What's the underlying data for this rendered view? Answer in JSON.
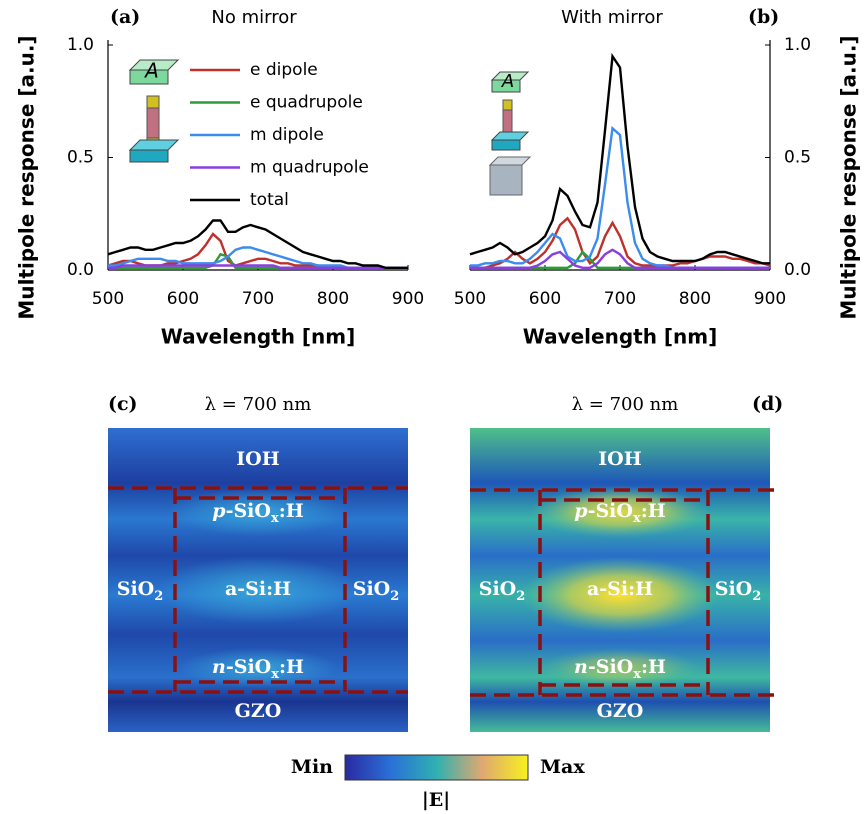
{
  "chart_data": [
    {
      "type": "line",
      "panel": "(a)",
      "title": "No mirror",
      "xlabel": "Wavelength [nm]",
      "ylabel": "Multipole response [a.u.]",
      "yaxis_side": "left",
      "legend": "upper-right",
      "xlim": [
        500,
        900
      ],
      "ylim": [
        0,
        1
      ],
      "xticks": [
        500,
        600,
        700,
        800,
        900
      ],
      "yticks": [
        {
          "value": 0,
          "label": "0.0"
        },
        {
          "value": 0.5,
          "label": "0.5"
        },
        {
          "value": 1,
          "label": "1.0"
        }
      ],
      "x": [
        500,
        510,
        520,
        530,
        540,
        550,
        560,
        570,
        580,
        590,
        600,
        610,
        620,
        630,
        640,
        650,
        660,
        670,
        680,
        690,
        700,
        710,
        720,
        730,
        740,
        750,
        760,
        770,
        780,
        790,
        800,
        810,
        820,
        830,
        840,
        850,
        860,
        870,
        880,
        890,
        900
      ],
      "series": [
        {
          "name": "e dipole",
          "color": "#c0302b",
          "values": [
            0.02,
            0.03,
            0.04,
            0.04,
            0.03,
            0.02,
            0.02,
            0.02,
            0.03,
            0.03,
            0.04,
            0.05,
            0.07,
            0.11,
            0.16,
            0.13,
            0.04,
            0.02,
            0.03,
            0.04,
            0.05,
            0.05,
            0.04,
            0.03,
            0.03,
            0.02,
            0.02,
            0.02,
            0.02,
            0.01,
            0.01,
            0.01,
            0.01,
            0.01,
            0.01,
            0.01,
            0.01,
            0.01,
            0.01,
            0.01,
            0.01
          ]
        },
        {
          "name": "e quadrupole",
          "color": "#2e9a3a",
          "values": [
            0.01,
            0.01,
            0.01,
            0.01,
            0.01,
            0.01,
            0.01,
            0.01,
            0.01,
            0.01,
            0.01,
            0.01,
            0.01,
            0.01,
            0.02,
            0.07,
            0.06,
            0.01,
            0.01,
            0.01,
            0.01,
            0.01,
            0.01,
            0.01,
            0.01,
            0.01,
            0.01,
            0.01,
            0.01,
            0.01,
            0.01,
            0.01,
            0.01,
            0.01,
            0.01,
            0.01,
            0.01,
            0.01,
            0.01,
            0.01,
            0.01
          ]
        },
        {
          "name": "m dipole",
          "color": "#3b8ced",
          "values": [
            0.02,
            0.02,
            0.03,
            0.04,
            0.05,
            0.05,
            0.05,
            0.05,
            0.04,
            0.04,
            0.03,
            0.03,
            0.03,
            0.03,
            0.03,
            0.04,
            0.06,
            0.09,
            0.1,
            0.1,
            0.09,
            0.08,
            0.07,
            0.06,
            0.05,
            0.04,
            0.03,
            0.03,
            0.02,
            0.02,
            0.02,
            0.02,
            0.01,
            0.01,
            0.01,
            0.01,
            0.01,
            0.01,
            0.01,
            0.01,
            0.01
          ]
        },
        {
          "name": "m quadrupole",
          "color": "#8a3ee0",
          "values": [
            0.01,
            0.01,
            0.02,
            0.02,
            0.02,
            0.02,
            0.02,
            0.02,
            0.02,
            0.02,
            0.02,
            0.02,
            0.02,
            0.02,
            0.02,
            0.02,
            0.02,
            0.02,
            0.02,
            0.02,
            0.02,
            0.02,
            0.02,
            0.01,
            0.01,
            0.01,
            0.01,
            0.01,
            0.01,
            0.01,
            0.01,
            0.01,
            0.01,
            0.01,
            0.01,
            0.01,
            0.01,
            0.01,
            0.01,
            0.01,
            0.01
          ]
        },
        {
          "name": "total",
          "color": "#000000",
          "values": [
            0.07,
            0.08,
            0.09,
            0.1,
            0.1,
            0.09,
            0.09,
            0.1,
            0.11,
            0.12,
            0.12,
            0.13,
            0.15,
            0.18,
            0.22,
            0.22,
            0.17,
            0.17,
            0.19,
            0.2,
            0.19,
            0.18,
            0.16,
            0.14,
            0.12,
            0.1,
            0.08,
            0.07,
            0.06,
            0.05,
            0.04,
            0.04,
            0.03,
            0.03,
            0.02,
            0.02,
            0.02,
            0.01,
            0.01,
            0.01,
            0.01
          ]
        }
      ]
    },
    {
      "type": "line",
      "panel": "(b)",
      "title": "With mirror",
      "xlabel": "Wavelength [nm]",
      "ylabel": "Multipole response [a.u.]",
      "yaxis_side": "right",
      "xlim": [
        500,
        900
      ],
      "ylim": [
        0,
        1
      ],
      "xticks": [
        500,
        600,
        700,
        800,
        900
      ],
      "yticks": [
        {
          "value": 0,
          "label": "0.0"
        },
        {
          "value": 0.5,
          "label": "0.5"
        },
        {
          "value": 1,
          "label": "1.0"
        }
      ],
      "x": [
        500,
        510,
        520,
        530,
        540,
        550,
        560,
        570,
        580,
        590,
        600,
        610,
        620,
        630,
        640,
        650,
        660,
        670,
        680,
        690,
        700,
        710,
        720,
        730,
        740,
        750,
        760,
        770,
        780,
        790,
        800,
        810,
        820,
        830,
        840,
        850,
        860,
        870,
        880,
        890,
        900
      ],
      "series": [
        {
          "color": "#c0302b",
          "values": [
            0.01,
            0.01,
            0.01,
            0.02,
            0.03,
            0.05,
            0.08,
            0.05,
            0.03,
            0.05,
            0.08,
            0.13,
            0.2,
            0.23,
            0.18,
            0.08,
            0.03,
            0.06,
            0.15,
            0.21,
            0.15,
            0.06,
            0.03,
            0.02,
            0.02,
            0.02,
            0.02,
            0.02,
            0.03,
            0.03,
            0.04,
            0.05,
            0.06,
            0.06,
            0.06,
            0.05,
            0.05,
            0.04,
            0.03,
            0.03,
            0.02
          ]
        },
        {
          "color": "#2e9a3a",
          "values": [
            0.01,
            0.01,
            0.01,
            0.01,
            0.01,
            0.01,
            0.01,
            0.01,
            0.01,
            0.01,
            0.01,
            0.01,
            0.01,
            0.01,
            0.03,
            0.08,
            0.05,
            0.01,
            0.01,
            0.01,
            0.01,
            0.01,
            0.01,
            0.01,
            0.01,
            0.01,
            0.01,
            0.01,
            0.01,
            0.01,
            0.01,
            0.01,
            0.01,
            0.01,
            0.01,
            0.01,
            0.01,
            0.01,
            0.01,
            0.01,
            0.01
          ]
        },
        {
          "color": "#3b8ced",
          "values": [
            0.02,
            0.02,
            0.03,
            0.03,
            0.04,
            0.04,
            0.03,
            0.03,
            0.05,
            0.08,
            0.12,
            0.16,
            0.14,
            0.06,
            0.04,
            0.04,
            0.06,
            0.14,
            0.38,
            0.63,
            0.6,
            0.3,
            0.12,
            0.05,
            0.03,
            0.02,
            0.02,
            0.01,
            0.01,
            0.01,
            0.01,
            0.01,
            0.01,
            0.01,
            0.01,
            0.01,
            0.01,
            0.01,
            0.01,
            0.01,
            0.01
          ]
        },
        {
          "color": "#8a3ee0",
          "values": [
            0.01,
            0.01,
            0.01,
            0.01,
            0.01,
            0.01,
            0.01,
            0.01,
            0.01,
            0.02,
            0.04,
            0.07,
            0.08,
            0.05,
            0.02,
            0.01,
            0.01,
            0.03,
            0.07,
            0.09,
            0.07,
            0.03,
            0.01,
            0.01,
            0.01,
            0.01,
            0.01,
            0.01,
            0.01,
            0.01,
            0.01,
            0.01,
            0.01,
            0.01,
            0.01,
            0.01,
            0.01,
            0.01,
            0.01,
            0.01,
            0.01
          ]
        },
        {
          "color": "#000000",
          "values": [
            0.07,
            0.08,
            0.09,
            0.1,
            0.12,
            0.1,
            0.07,
            0.08,
            0.1,
            0.12,
            0.15,
            0.22,
            0.36,
            0.33,
            0.26,
            0.2,
            0.19,
            0.3,
            0.62,
            0.95,
            0.9,
            0.55,
            0.28,
            0.14,
            0.08,
            0.06,
            0.05,
            0.04,
            0.04,
            0.04,
            0.04,
            0.05,
            0.07,
            0.08,
            0.08,
            0.07,
            0.06,
            0.05,
            0.04,
            0.03,
            0.03
          ]
        }
      ]
    }
  ],
  "maps": [
    {
      "panel": "(c)",
      "title": "λ = 700 nm",
      "labels": [
        {
          "text": "IOH"
        },
        {
          "italic": "p",
          "text": "-SiO",
          "sub": "x",
          "tail": ":H"
        },
        {
          "text": "SiO",
          "sub": "2"
        },
        {
          "text": "a-Si:H"
        },
        {
          "text": "SiO",
          "sub": "2"
        },
        {
          "italic": "n",
          "text": "-SiO",
          "sub": "x",
          "tail": ":H"
        },
        {
          "text": "GZO"
        }
      ]
    },
    {
      "panel": "(d)",
      "title": "λ = 700 nm",
      "labels": [
        {
          "text": "IOH"
        },
        {
          "italic": "p",
          "text": "-SiO",
          "sub": "x",
          "tail": ":H"
        },
        {
          "text": "SiO",
          "sub": "2"
        },
        {
          "text": "a-Si:H"
        },
        {
          "text": "SiO",
          "sub": "2"
        },
        {
          "italic": "n",
          "text": "-SiO",
          "sub": "x",
          "tail": ":H"
        },
        {
          "text": "GZO"
        }
      ]
    }
  ],
  "colorbar": {
    "min": "Min",
    "max": "Max",
    "label": "|E|"
  }
}
